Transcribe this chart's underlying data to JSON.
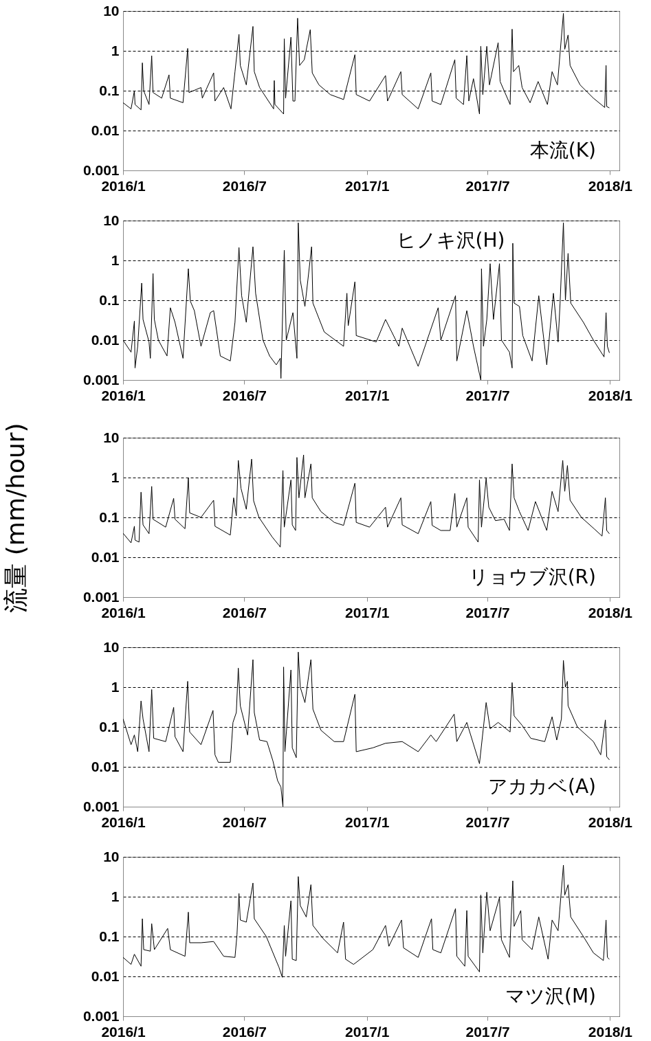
{
  "chart_data": [
    {
      "type": "line",
      "log": true,
      "grid": "y",
      "line_style": "solid",
      "annotations": [
        "本流(K)"
      ],
      "xlim": [
        "2016-01-01",
        "2018-01-15"
      ],
      "ylim": [
        0.001,
        10
      ],
      "yticks": [
        0.001,
        0.01,
        0.1,
        1,
        10
      ],
      "xticks": [
        {
          "value": "2016-01",
          "label": "2016/1"
        },
        {
          "value": "2016-07",
          "label": "2016/7"
        },
        {
          "value": "2017-01",
          "label": "2017/1"
        },
        {
          "value": "2017-07",
          "label": "2017/7"
        },
        {
          "value": "2018-01",
          "label": "2018/1"
        }
      ],
      "x": [
        "2016-01-01",
        "2016-01-13",
        "2016-01-18",
        "2016-01-19",
        "2016-01-28",
        "2016-01-30",
        "2016-02-01",
        "2016-02-09",
        "2016-02-13",
        "2016-02-15",
        "2016-02-28",
        "2016-03-10",
        "2016-03-12",
        "2016-03-31",
        "2016-04-07",
        "2016-04-09",
        "2016-04-27",
        "2016-04-29",
        "2016-05-16",
        "2016-05-18",
        "2016-05-31",
        "2016-06-11",
        "2016-06-17",
        "2016-06-23",
        "2016-06-25",
        "2016-07-04",
        "2016-07-14",
        "2016-07-16",
        "2016-07-24",
        "2016-08-14",
        "2016-08-15",
        "2016-08-16",
        "2016-08-29",
        "2016-08-30",
        "2016-09-01",
        "2016-09-09",
        "2016-09-12",
        "2016-09-15",
        "2016-09-19",
        "2016-09-22",
        "2016-09-29",
        "2016-10-08",
        "2016-10-11",
        "2016-10-21",
        "2016-11-07",
        "2016-11-27",
        "2016-12-14",
        "2016-12-16",
        "2017-01-05",
        "2017-01-29",
        "2017-02-01",
        "2017-02-21",
        "2017-02-23",
        "2017-03-19",
        "2017-04-07",
        "2017-04-09",
        "2017-04-22",
        "2017-05-13",
        "2017-05-15",
        "2017-05-26",
        "2017-05-31",
        "2017-06-03",
        "2017-06-10",
        "2017-06-19",
        "2017-06-21",
        "2017-06-24",
        "2017-06-30",
        "2017-07-04",
        "2017-07-17",
        "2017-07-20",
        "2017-08-04",
        "2017-08-07",
        "2017-08-09",
        "2017-08-17",
        "2017-08-22",
        "2017-09-03",
        "2017-09-15",
        "2017-09-29",
        "2017-10-06",
        "2017-10-14",
        "2017-10-23",
        "2017-10-25",
        "2017-10-30",
        "2017-11-02",
        "2017-11-17",
        "2017-12-07",
        "2017-12-24",
        "2017-12-26",
        "2017-12-27",
        "2017-12-31"
      ],
      "series": [
        {
          "color": "#000000",
          "values": [
            0.05,
            0.035,
            0.1,
            0.045,
            0.033,
            0.5,
            0.1,
            0.045,
            0.75,
            0.09,
            0.065,
            0.25,
            0.065,
            0.05,
            1.15,
            0.09,
            0.12,
            0.065,
            0.28,
            0.055,
            0.12,
            0.035,
            0.3,
            2.6,
            0.43,
            0.14,
            4.1,
            0.3,
            0.12,
            0.035,
            0.18,
            0.045,
            0.026,
            2.0,
            0.065,
            2.2,
            0.055,
            0.055,
            6.6,
            0.43,
            0.6,
            3.4,
            0.28,
            0.14,
            0.08,
            0.06,
            0.8,
            0.08,
            0.055,
            0.24,
            0.055,
            0.3,
            0.08,
            0.035,
            0.28,
            0.055,
            0.045,
            0.6,
            0.065,
            0.045,
            0.76,
            0.055,
            0.2,
            0.026,
            1.3,
            0.08,
            1.3,
            0.14,
            1.6,
            0.17,
            0.045,
            3.5,
            0.3,
            0.43,
            0.12,
            0.05,
            0.17,
            0.045,
            0.3,
            0.14,
            8.7,
            1.1,
            2.5,
            0.43,
            0.14,
            0.065,
            0.038,
            0.43,
            0.04,
            0.037
          ]
        }
      ]
    },
    {
      "type": "line",
      "log": true,
      "grid": "y",
      "line_style": "solid",
      "annotations": [
        "ヒノキ沢(H)"
      ],
      "xlim": [
        "2016-01-01",
        "2018-01-15"
      ],
      "ylim": [
        0.001,
        10
      ],
      "yticks": [
        0.001,
        0.01,
        0.1,
        1,
        10
      ],
      "xticks": [
        {
          "value": "2016-01",
          "label": "2016/1"
        },
        {
          "value": "2016-07",
          "label": "2016/7"
        },
        {
          "value": "2017-01",
          "label": "2017/1"
        },
        {
          "value": "2017-07",
          "label": "2017/7"
        },
        {
          "value": "2018-01",
          "label": "2018/1"
        }
      ],
      "x": [
        "2016-01-01",
        "2016-01-13",
        "2016-01-18",
        "2016-01-19",
        "2016-01-23",
        "2016-01-29",
        "2016-01-31",
        "2016-02-09",
        "2016-02-11",
        "2016-02-15",
        "2016-02-17",
        "2016-02-23",
        "2016-03-07",
        "2016-03-12",
        "2016-03-19",
        "2016-03-31",
        "2016-04-08",
        "2016-04-11",
        "2016-04-17",
        "2016-04-27",
        "2016-05-11",
        "2016-05-16",
        "2016-05-26",
        "2016-06-10",
        "2016-06-17",
        "2016-06-23",
        "2016-06-27",
        "2016-07-04",
        "2016-07-14",
        "2016-07-18",
        "2016-07-29",
        "2016-08-08",
        "2016-08-18",
        "2016-08-24",
        "2016-08-25",
        "2016-08-30",
        "2016-09-02",
        "2016-09-12",
        "2016-09-18",
        "2016-09-20",
        "2016-09-23",
        "2016-09-30",
        "2016-10-10",
        "2016-10-12",
        "2016-10-29",
        "2016-11-27",
        "2016-12-02",
        "2016-12-04",
        "2016-12-14",
        "2016-12-16",
        "2017-01-15",
        "2017-01-29",
        "2017-02-18",
        "2017-02-23",
        "2017-03-19",
        "2017-04-18",
        "2017-04-22",
        "2017-05-14",
        "2017-05-16",
        "2017-05-31",
        "2017-06-10",
        "2017-06-21",
        "2017-06-22",
        "2017-06-25",
        "2017-06-30",
        "2017-07-05",
        "2017-07-10",
        "2017-07-19",
        "2017-07-22",
        "2017-08-03",
        "2017-08-07",
        "2017-08-08",
        "2017-08-10",
        "2017-08-18",
        "2017-08-23",
        "2017-09-06",
        "2017-09-16",
        "2017-09-28",
        "2017-10-08",
        "2017-10-15",
        "2017-10-18",
        "2017-10-23",
        "2017-10-26",
        "2017-10-30",
        "2017-11-03",
        "2017-11-22",
        "2017-12-07",
        "2017-12-23",
        "2017-12-26",
        "2017-12-28",
        "2017-12-31"
      ],
      "series": [
        {
          "color": "#000000",
          "values": [
            0.01,
            0.005,
            0.03,
            0.002,
            0.007,
            0.27,
            0.033,
            0.009,
            0.0035,
            0.47,
            0.033,
            0.01,
            0.004,
            0.065,
            0.028,
            0.0035,
            0.62,
            0.095,
            0.055,
            0.007,
            0.049,
            0.055,
            0.004,
            0.003,
            0.028,
            2.1,
            0.13,
            0.028,
            2.2,
            0.15,
            0.01,
            0.004,
            0.0024,
            0.0035,
            0.0011,
            1.8,
            0.01,
            0.049,
            0.0035,
            8.8,
            0.32,
            0.07,
            2.2,
            0.085,
            0.016,
            0.007,
            0.15,
            0.023,
            0.29,
            0.013,
            0.009,
            0.033,
            0.007,
            0.02,
            0.0022,
            0.065,
            0.01,
            0.13,
            0.003,
            0.055,
            0.007,
            0.001,
            0.62,
            0.007,
            0.033,
            0.83,
            0.033,
            0.83,
            0.01,
            0.005,
            0.002,
            2.7,
            0.085,
            0.07,
            0.013,
            0.003,
            0.13,
            0.0024,
            0.15,
            0.009,
            0.085,
            8.8,
            0.1,
            1.5,
            0.085,
            0.028,
            0.01,
            0.0038,
            0.049,
            0.007,
            0.0048
          ]
        }
      ]
    },
    {
      "type": "line",
      "log": true,
      "grid": "y",
      "line_style": "solid",
      "ylabel": "流量 (mm/hour)",
      "annotations": [
        "リョウブ沢(R)"
      ],
      "xlim": [
        "2016-01-01",
        "2018-01-15"
      ],
      "ylim": [
        0.001,
        10
      ],
      "yticks": [
        0.001,
        0.01,
        0.1,
        1,
        10
      ],
      "xticks": [
        {
          "value": "2016-01",
          "label": "2016/1"
        },
        {
          "value": "2016-07",
          "label": "2016/7"
        },
        {
          "value": "2017-01",
          "label": "2017/1"
        },
        {
          "value": "2017-07",
          "label": "2017/7"
        },
        {
          "value": "2018-01",
          "label": "2018/1"
        }
      ],
      "x": [
        "2016-01-01",
        "2016-01-13",
        "2016-01-18",
        "2016-01-19",
        "2016-01-25",
        "2016-01-28",
        "2016-01-31",
        "2016-02-09",
        "2016-02-13",
        "2016-02-15",
        "2016-03-05",
        "2016-03-17",
        "2016-03-19",
        "2016-04-03",
        "2016-04-08",
        "2016-04-10",
        "2016-04-27",
        "2016-05-16",
        "2016-05-18",
        "2016-06-10",
        "2016-06-15",
        "2016-06-19",
        "2016-06-22",
        "2016-06-26",
        "2016-07-04",
        "2016-07-12",
        "2016-07-15",
        "2016-07-23",
        "2016-08-12",
        "2016-08-22",
        "2016-08-24",
        "2016-08-28",
        "2016-08-30",
        "2016-09-09",
        "2016-09-11",
        "2016-09-16",
        "2016-09-18",
        "2016-09-21",
        "2016-09-28",
        "2016-09-30",
        "2016-10-09",
        "2016-10-11",
        "2016-10-24",
        "2016-11-13",
        "2016-11-27",
        "2016-12-14",
        "2016-12-16",
        "2017-01-05",
        "2017-01-29",
        "2017-02-01",
        "2017-02-21",
        "2017-02-23",
        "2017-03-19",
        "2017-04-07",
        "2017-04-09",
        "2017-04-22",
        "2017-05-06",
        "2017-05-13",
        "2017-05-16",
        "2017-05-31",
        "2017-06-02",
        "2017-06-17",
        "2017-06-19",
        "2017-06-22",
        "2017-06-29",
        "2017-07-03",
        "2017-07-13",
        "2017-07-26",
        "2017-08-03",
        "2017-08-07",
        "2017-08-10",
        "2017-08-18",
        "2017-08-31",
        "2017-09-11",
        "2017-09-28",
        "2017-10-06",
        "2017-10-15",
        "2017-10-22",
        "2017-10-25",
        "2017-10-29",
        "2017-11-02",
        "2017-11-19",
        "2017-12-08",
        "2017-12-20",
        "2017-12-25",
        "2017-12-27",
        "2017-12-31"
      ],
      "series": [
        {
          "color": "#000000",
          "values": [
            0.04,
            0.023,
            0.06,
            0.027,
            0.024,
            0.43,
            0.065,
            0.039,
            0.6,
            0.09,
            0.057,
            0.3,
            0.09,
            0.052,
            1.0,
            0.13,
            0.1,
            0.27,
            0.06,
            0.036,
            0.31,
            0.11,
            2.7,
            0.54,
            0.16,
            2.9,
            0.26,
            0.1,
            0.032,
            0.02,
            0.018,
            1.5,
            0.057,
            0.87,
            0.065,
            0.047,
            3.2,
            0.31,
            3.7,
            0.31,
            2.2,
            0.31,
            0.14,
            0.075,
            0.063,
            0.72,
            0.075,
            0.057,
            0.18,
            0.057,
            0.31,
            0.065,
            0.039,
            0.25,
            0.063,
            0.047,
            0.047,
            0.4,
            0.057,
            0.31,
            0.057,
            0.024,
            0.87,
            0.057,
            0.95,
            0.18,
            0.083,
            0.09,
            0.047,
            2.2,
            0.31,
            0.14,
            0.047,
            0.25,
            0.047,
            0.45,
            0.14,
            2.7,
            0.45,
            2.0,
            0.27,
            0.1,
            0.052,
            0.034,
            0.31,
            0.047,
            0.039
          ]
        }
      ]
    },
    {
      "type": "line",
      "log": true,
      "grid": "y",
      "line_style": "solid",
      "annotations": [
        "アカカベ(A)"
      ],
      "xlim": [
        "2016-01-01",
        "2018-01-15"
      ],
      "ylim": [
        0.001,
        10
      ],
      "yticks": [
        0.001,
        0.01,
        0.1,
        1,
        10
      ],
      "xticks": [
        {
          "value": "2016-01",
          "label": "2016/1"
        },
        {
          "value": "2016-07",
          "label": "2016/7"
        },
        {
          "value": "2017-01",
          "label": "2017/1"
        },
        {
          "value": "2017-07",
          "label": "2017/7"
        },
        {
          "value": "2018-01",
          "label": "2018/1"
        }
      ],
      "x": [
        "2016-01-01",
        "2016-01-13",
        "2016-01-18",
        "2016-01-23",
        "2016-01-28",
        "2016-01-31",
        "2016-02-09",
        "2016-02-13",
        "2016-02-16",
        "2016-03-05",
        "2016-03-17",
        "2016-03-19",
        "2016-03-31",
        "2016-04-07",
        "2016-04-10",
        "2016-04-27",
        "2016-05-15",
        "2016-05-18",
        "2016-05-23",
        "2016-06-10",
        "2016-06-14",
        "2016-06-19",
        "2016-06-22",
        "2016-06-25",
        "2016-07-06",
        "2016-07-14",
        "2016-07-16",
        "2016-07-24",
        "2016-08-04",
        "2016-08-13",
        "2016-08-20",
        "2016-08-25",
        "2016-08-28",
        "2016-08-29",
        "2016-08-31",
        "2016-09-09",
        "2016-09-11",
        "2016-09-17",
        "2016-09-20",
        "2016-09-23",
        "2016-09-30",
        "2016-10-09",
        "2016-10-12",
        "2016-10-24",
        "2016-11-13",
        "2016-11-27",
        "2016-12-14",
        "2016-12-16",
        "2017-01-10",
        "2017-01-29",
        "2017-02-23",
        "2017-03-19",
        "2017-04-07",
        "2017-04-15",
        "2017-05-12",
        "2017-05-16",
        "2017-05-31",
        "2017-06-19",
        "2017-06-29",
        "2017-07-05",
        "2017-07-17",
        "2017-08-04",
        "2017-08-07",
        "2017-08-10",
        "2017-08-22",
        "2017-09-04",
        "2017-09-25",
        "2017-10-06",
        "2017-10-13",
        "2017-10-20",
        "2017-10-23",
        "2017-10-26",
        "2017-10-29",
        "2017-10-30",
        "2017-11-13",
        "2017-12-07",
        "2017-12-18",
        "2017-12-25",
        "2017-12-27",
        "2017-12-31"
      ],
      "series": [
        {
          "color": "#000000",
          "values": [
            0.16,
            0.036,
            0.063,
            0.024,
            0.45,
            0.16,
            0.024,
            0.87,
            0.052,
            0.043,
            0.31,
            0.057,
            0.024,
            1.4,
            0.075,
            0.036,
            0.26,
            0.02,
            0.013,
            0.013,
            0.13,
            0.23,
            3.0,
            0.34,
            0.063,
            4.9,
            0.23,
            0.047,
            0.043,
            0.014,
            0.0045,
            0.0031,
            0.001,
            3.2,
            0.024,
            2.7,
            0.03,
            0.017,
            7.6,
            1.0,
            0.41,
            4.9,
            0.28,
            0.083,
            0.043,
            0.043,
            0.66,
            0.024,
            0.03,
            0.039,
            0.043,
            0.024,
            0.063,
            0.043,
            0.21,
            0.043,
            0.13,
            0.012,
            0.41,
            0.09,
            0.13,
            0.075,
            1.3,
            0.19,
            0.11,
            0.052,
            0.043,
            0.18,
            0.047,
            0.16,
            4.7,
            1.0,
            1.4,
            0.34,
            0.1,
            0.043,
            0.02,
            0.15,
            0.018,
            0.015
          ]
        }
      ]
    },
    {
      "type": "line",
      "log": true,
      "grid": "y",
      "line_style": "solid",
      "annotations": [
        "マツ沢(M)"
      ],
      "xlim": [
        "2016-01-01",
        "2018-01-15"
      ],
      "ylim": [
        0.001,
        10
      ],
      "yticks": [
        0.001,
        0.01,
        0.1,
        1,
        10
      ],
      "xticks": [
        {
          "value": "2016-01",
          "label": "2016/1"
        },
        {
          "value": "2016-07",
          "label": "2016/7"
        },
        {
          "value": "2017-01",
          "label": "2017/1"
        },
        {
          "value": "2017-07",
          "label": "2017/7"
        },
        {
          "value": "2018-01",
          "label": "2018/1"
        }
      ],
      "x": [
        "2016-01-01",
        "2016-01-13",
        "2016-01-18",
        "2016-01-28",
        "2016-01-30",
        "2016-02-01",
        "2016-02-11",
        "2016-02-13",
        "2016-02-17",
        "2016-03-08",
        "2016-03-12",
        "2016-04-03",
        "2016-04-08",
        "2016-04-10",
        "2016-04-27",
        "2016-05-16",
        "2016-05-31",
        "2016-06-17",
        "2016-06-20",
        "2016-06-23",
        "2016-06-25",
        "2016-07-04",
        "2016-07-14",
        "2016-07-16",
        "2016-08-03",
        "2016-08-17",
        "2016-08-22",
        "2016-08-27",
        "2016-08-30",
        "2016-09-01",
        "2016-09-09",
        "2016-09-11",
        "2016-09-17",
        "2016-09-20",
        "2016-09-23",
        "2016-10-02",
        "2016-10-09",
        "2016-10-12",
        "2016-10-27",
        "2016-11-18",
        "2016-11-27",
        "2016-11-30",
        "2016-12-12",
        "2017-01-10",
        "2017-01-29",
        "2017-02-03",
        "2017-02-22",
        "2017-02-25",
        "2017-03-19",
        "2017-04-08",
        "2017-04-10",
        "2017-04-22",
        "2017-05-14",
        "2017-05-16",
        "2017-05-28",
        "2017-05-31",
        "2017-06-02",
        "2017-06-19",
        "2017-06-21",
        "2017-06-24",
        "2017-06-30",
        "2017-07-05",
        "2017-07-19",
        "2017-07-22",
        "2017-08-03",
        "2017-08-08",
        "2017-08-10",
        "2017-08-20",
        "2017-08-22",
        "2017-09-06",
        "2017-09-16",
        "2017-09-30",
        "2017-10-06",
        "2017-10-15",
        "2017-10-23",
        "2017-10-25",
        "2017-10-30",
        "2017-11-03",
        "2017-11-22",
        "2017-12-07",
        "2017-12-22",
        "2017-12-26",
        "2017-12-28",
        "2017-12-31"
      ],
      "series": [
        {
          "color": "#000000",
          "values": [
            0.03,
            0.02,
            0.036,
            0.018,
            0.28,
            0.047,
            0.043,
            0.21,
            0.047,
            0.16,
            0.047,
            0.032,
            0.41,
            0.07,
            0.07,
            0.075,
            0.032,
            0.03,
            0.11,
            1.2,
            0.26,
            0.23,
            2.2,
            0.28,
            0.1,
            0.027,
            0.017,
            0.0095,
            0.19,
            0.032,
            0.79,
            0.027,
            0.025,
            3.2,
            0.6,
            0.31,
            2.0,
            0.19,
            0.09,
            0.039,
            0.23,
            0.027,
            0.02,
            0.047,
            0.19,
            0.057,
            0.26,
            0.052,
            0.03,
            0.28,
            0.047,
            0.039,
            0.5,
            0.032,
            0.018,
            0.45,
            0.032,
            0.013,
            1.1,
            0.039,
            1.3,
            0.14,
            0.95,
            0.083,
            0.03,
            2.5,
            0.18,
            0.45,
            0.083,
            0.047,
            0.31,
            0.027,
            0.26,
            0.14,
            6.2,
            1.1,
            2.0,
            0.31,
            0.1,
            0.039,
            0.025,
            0.26,
            0.03,
            0.027
          ]
        }
      ]
    }
  ]
}
